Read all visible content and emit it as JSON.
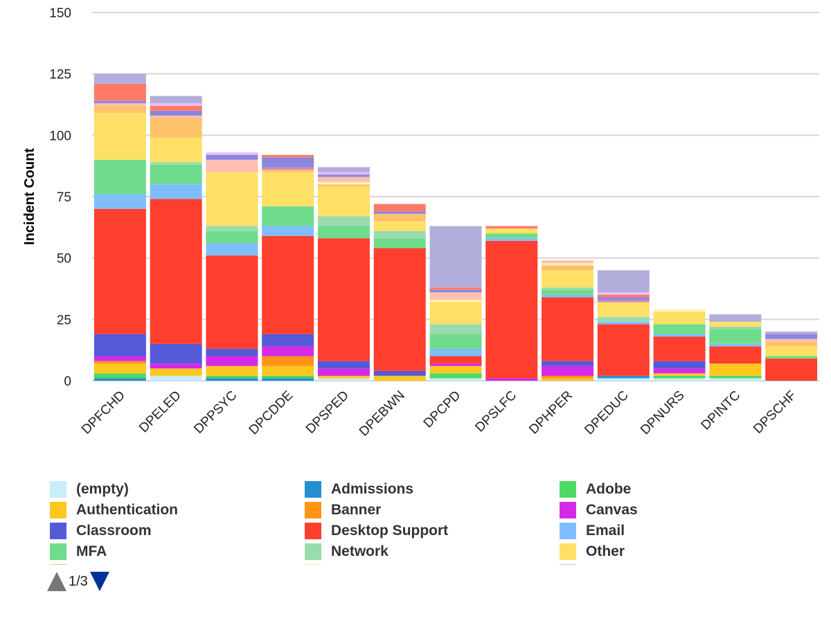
{
  "chart_data": {
    "type": "bar",
    "stacked": true,
    "title": "",
    "xlabel": "",
    "ylabel": "Incident Count",
    "ylim": [
      0,
      150
    ],
    "yticks": [
      0,
      25,
      50,
      75,
      100,
      125,
      150
    ],
    "grid": true,
    "legend_position": "bottom",
    "categories": [
      "DPFCHD",
      "DPELED",
      "DPPSYC",
      "DPCDDE",
      "DPSPED",
      "DPEBWN",
      "DPCPD",
      "DPSLFC",
      "DPHPER",
      "DPEDUC",
      "DPNURS",
      "DPINTC",
      "DPSCHF"
    ],
    "series": [
      {
        "name": "(empty)",
        "color": "#C9EEFA",
        "values": [
          0,
          2,
          0,
          0,
          1,
          0,
          1,
          0,
          0,
          1,
          1,
          1,
          0
        ]
      },
      {
        "name": "Admissions",
        "color": "#268FD1",
        "values": [
          1,
          0,
          1,
          1,
          0,
          0,
          0,
          0,
          0,
          1,
          0,
          0,
          0
        ]
      },
      {
        "name": "Adobe",
        "color": "#4CD964",
        "values": [
          2,
          0,
          1,
          1,
          0,
          0,
          2,
          0,
          0,
          0,
          1,
          1,
          0
        ]
      },
      {
        "name": "Authentication",
        "color": "#FFC71F",
        "values": [
          4,
          3,
          4,
          4,
          1,
          2,
          3,
          0,
          1,
          0,
          1,
          5,
          0
        ]
      },
      {
        "name": "Banner",
        "color": "#FF9417",
        "values": [
          1,
          0,
          0,
          4,
          0,
          0,
          0,
          0,
          1,
          0,
          0,
          0,
          0
        ]
      },
      {
        "name": "Canvas",
        "color": "#D42AE8",
        "values": [
          2,
          2,
          4,
          4,
          3,
          0,
          1,
          1,
          4,
          0,
          2,
          0,
          0
        ]
      },
      {
        "name": "Classroom",
        "color": "#545AD8",
        "values": [
          9,
          8,
          3,
          5,
          3,
          2,
          0,
          0,
          2,
          0,
          3,
          0,
          0
        ]
      },
      {
        "name": "Desktop Support",
        "color": "#FF3F2E",
        "values": [
          51,
          59,
          38,
          40,
          50,
          50,
          3,
          56,
          26,
          21,
          10,
          7,
          9
        ]
      },
      {
        "name": "Email",
        "color": "#80BDFF",
        "values": [
          6,
          6,
          5,
          4,
          0,
          0,
          3,
          1,
          1,
          1,
          1,
          1,
          0
        ]
      },
      {
        "name": "MFA",
        "color": "#6FDC8C",
        "values": [
          14,
          8,
          5,
          8,
          5,
          4,
          6,
          2,
          2,
          0,
          4,
          6,
          1
        ]
      },
      {
        "name": "Network",
        "color": "#9ADBAD",
        "values": [
          0,
          1,
          2,
          0,
          4,
          3,
          4,
          0,
          1,
          2,
          0,
          1,
          0
        ]
      },
      {
        "name": "Other",
        "color": "#FFE066",
        "values": [
          19,
          10,
          22,
          14,
          12,
          4,
          9,
          2,
          7,
          6,
          5,
          2,
          4
        ]
      },
      {
        "color": "#FFC26B",
        "values": [
          3,
          8,
          0,
          1,
          1,
          3,
          0,
          0,
          2,
          0,
          0,
          0,
          2
        ]
      },
      {
        "color": "#FFF0A8",
        "values": [
          0,
          0,
          0,
          0,
          1,
          0,
          1,
          0,
          1,
          0,
          1,
          0,
          0
        ]
      },
      {
        "color": "#FFBFB3",
        "values": [
          1,
          1,
          5,
          0,
          2,
          0,
          3,
          0,
          1,
          0,
          0,
          0,
          1
        ]
      },
      {
        "color": "#D085C6",
        "values": [
          0,
          0,
          0,
          1,
          0,
          0,
          0,
          0,
          0,
          1,
          0,
          0,
          0
        ]
      },
      {
        "color": "#8A86DE",
        "values": [
          1,
          2,
          2,
          4,
          1,
          1,
          1,
          0,
          0,
          1,
          0,
          0,
          2
        ]
      },
      {
        "color": "#FF7B66",
        "values": [
          7,
          2,
          0,
          1,
          0,
          3,
          1,
          1,
          0,
          1,
          0,
          0,
          0
        ]
      },
      {
        "color": "#E9BDF5",
        "values": [
          0,
          1,
          1,
          0,
          1,
          0,
          0,
          0,
          0,
          1,
          0,
          0,
          0
        ]
      },
      {
        "color": "#B1AEDC",
        "values": [
          4,
          3,
          0,
          0,
          2,
          0,
          25,
          0,
          0,
          9,
          0,
          3,
          1
        ]
      }
    ]
  },
  "legend": {
    "page_indicator": "1/3",
    "prev_icon": "triangle-up-icon",
    "next_icon": "triangle-down-icon"
  }
}
